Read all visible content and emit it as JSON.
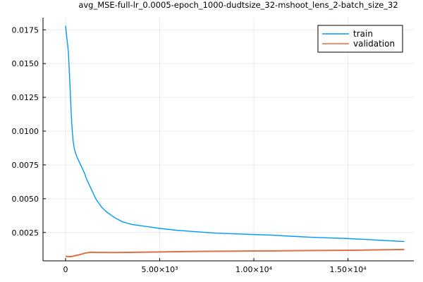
{
  "chart_data": {
    "type": "line",
    "title": "avg_MSE-full-lr_0.0005-epoch_1000-dudtsize_32-mshoot_lens_2-batch_size_32",
    "xlabel": "",
    "ylabel": "",
    "xlim": [
      -1200,
      18500
    ],
    "ylim": [
      0.0004,
      0.0184
    ],
    "grid": true,
    "legend_position": "top-right",
    "x_ticks": [
      {
        "value": 0,
        "label": "0"
      },
      {
        "value": 5000,
        "label": "5.00×10³"
      },
      {
        "value": 10000,
        "label": "1.00×10⁴"
      },
      {
        "value": 15000,
        "label": "1.50×10⁴"
      }
    ],
    "y_ticks": [
      {
        "value": 0.0025,
        "label": "0.0025"
      },
      {
        "value": 0.005,
        "label": "0.0050"
      },
      {
        "value": 0.0075,
        "label": "0.0075"
      },
      {
        "value": 0.01,
        "label": "0.0100"
      },
      {
        "value": 0.0125,
        "label": "0.0125"
      },
      {
        "value": 0.015,
        "label": "0.0150"
      },
      {
        "value": 0.0175,
        "label": "0.0175"
      }
    ],
    "series": [
      {
        "name": "train",
        "color": "#009AFA",
        "x": [
          0,
          50,
          100,
          150,
          200,
          250,
          300,
          350,
          400,
          450,
          500,
          600,
          700,
          800,
          900,
          1000,
          1100,
          1200,
          1300,
          1400,
          1500,
          1600,
          1700,
          1800,
          1900,
          2000,
          2200,
          2400,
          2600,
          2800,
          3000,
          3500,
          4000,
          4500,
          5000,
          6000,
          7000,
          8000,
          9000,
          10000,
          11000,
          12000,
          13000,
          14000,
          15000,
          16000,
          17000,
          18000
        ],
        "y": [
          0.0178,
          0.0171,
          0.0165,
          0.0158,
          0.0144,
          0.0128,
          0.0113,
          0.0101,
          0.0093,
          0.0088,
          0.0085,
          0.0081,
          0.0078,
          0.0075,
          0.0072,
          0.0069,
          0.0065,
          0.0062,
          0.0059,
          0.0056,
          0.0053,
          0.005,
          0.0048,
          0.0046,
          0.0044,
          0.00425,
          0.004,
          0.0038,
          0.0036,
          0.00345,
          0.0033,
          0.0031,
          0.003,
          0.0029,
          0.0028,
          0.00265,
          0.00255,
          0.00245,
          0.0024,
          0.00235,
          0.0023,
          0.00222,
          0.00215,
          0.0021,
          0.00205,
          0.00198,
          0.0019,
          0.00183
        ]
      },
      {
        "name": "validation",
        "color": "#E26F46",
        "x": [
          0,
          100,
          200,
          300,
          400,
          500,
          600,
          700,
          800,
          900,
          1000,
          1100,
          1200,
          1300,
          1400,
          1500,
          1700,
          2000,
          2500,
          3000,
          4000,
          5000,
          6000,
          7000,
          8000,
          9000,
          10000,
          11000,
          12000,
          13000,
          14000,
          15000,
          16000,
          17000,
          18000
        ],
        "y": [
          0.00075,
          0.00072,
          0.00071,
          0.00071,
          0.00075,
          0.00078,
          0.00081,
          0.00084,
          0.00088,
          0.00092,
          0.00096,
          0.00099,
          0.00101,
          0.00103,
          0.00104,
          0.00103,
          0.00102,
          0.00102,
          0.00101,
          0.00102,
          0.00104,
          0.00106,
          0.00108,
          0.0011,
          0.00111,
          0.00112,
          0.00113,
          0.00114,
          0.00115,
          0.00116,
          0.00117,
          0.00118,
          0.0012,
          0.00122,
          0.00124
        ]
      }
    ]
  }
}
